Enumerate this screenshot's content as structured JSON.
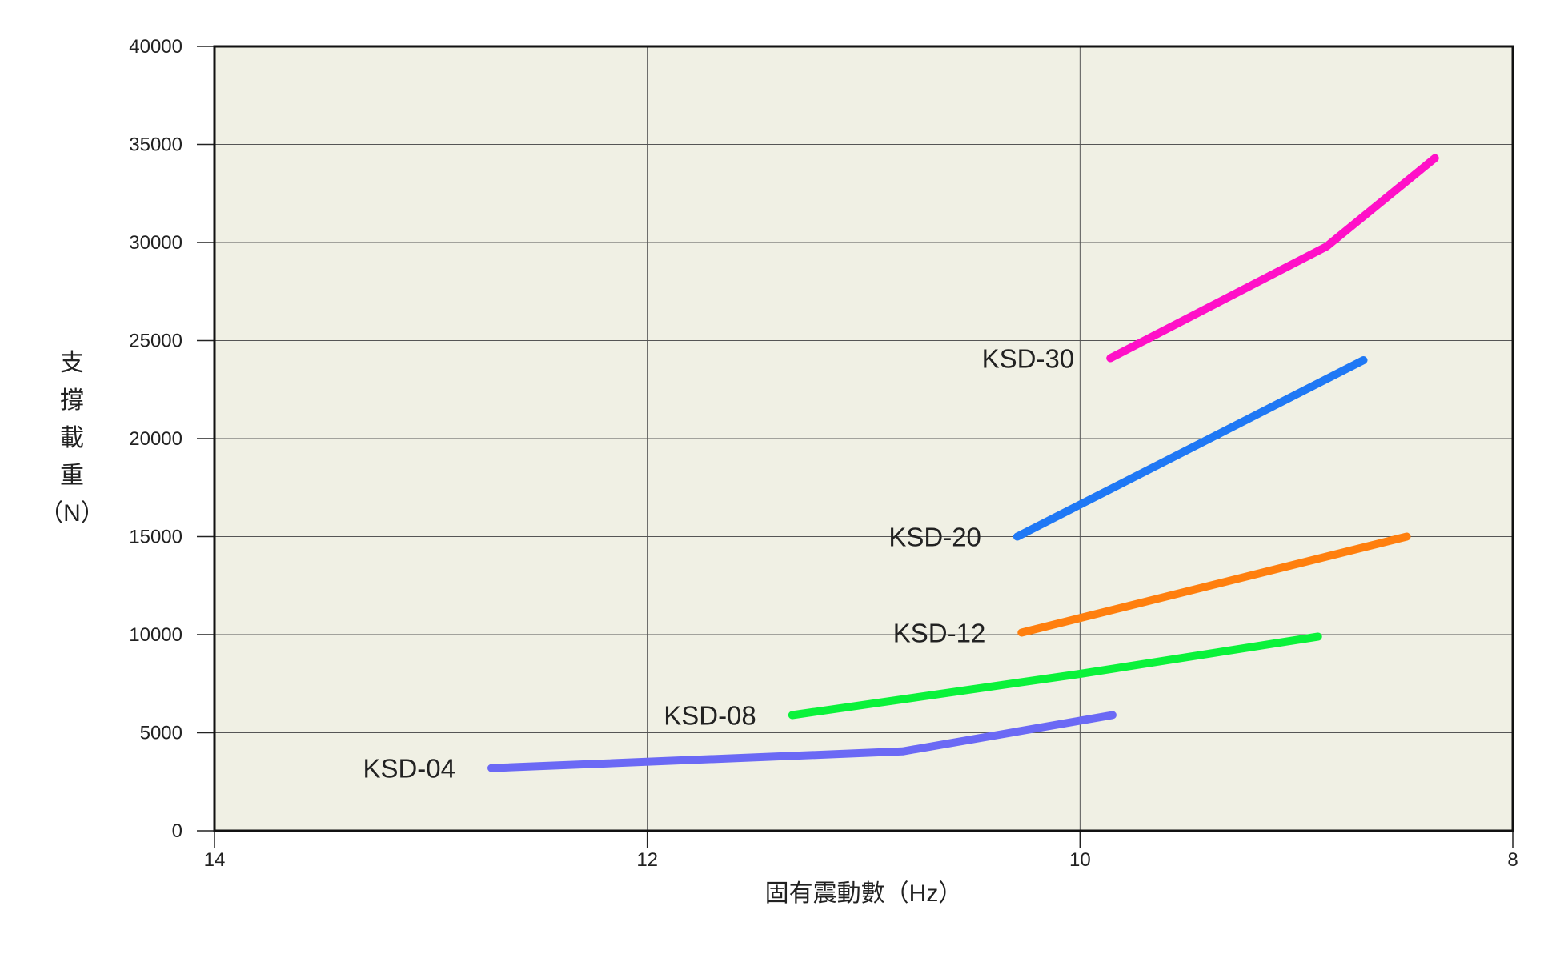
{
  "chart_data": {
    "type": "line",
    "xlabel": "固有震動數（Hz）",
    "ylabel_chars": [
      "支",
      "撐",
      "載",
      "重",
      "（N）"
    ],
    "xlim": [
      14,
      8
    ],
    "ylim": [
      0,
      40000
    ],
    "x_reversed": true,
    "x_ticks": [
      14,
      12,
      10,
      8
    ],
    "y_ticks": [
      0,
      5000,
      10000,
      15000,
      20000,
      25000,
      30000,
      35000,
      40000
    ],
    "grid": true,
    "plot_background": "#f0f0e4",
    "series": [
      {
        "name": "KSD-04",
        "color": "#6b69f5",
        "x": [
          12.72,
          10.82,
          9.85
        ],
        "y": [
          3200,
          4050,
          5900
        ]
      },
      {
        "name": "KSD-08",
        "color": "#0af23a",
        "x": [
          11.33,
          10.0,
          8.9
        ],
        "y": [
          5900,
          8000,
          9900
        ]
      },
      {
        "name": "KSD-12",
        "color": "#ff7f0e",
        "x": [
          10.27,
          8.49
        ],
        "y": [
          10100,
          15000
        ]
      },
      {
        "name": "KSD-20",
        "color": "#1f78f5",
        "x": [
          10.29,
          8.69
        ],
        "y": [
          15000,
          24000
        ]
      },
      {
        "name": "KSD-30",
        "color": "#ff10c8",
        "x": [
          9.86,
          8.86,
          8.36
        ],
        "y": [
          24100,
          29800,
          34300
        ]
      }
    ]
  }
}
